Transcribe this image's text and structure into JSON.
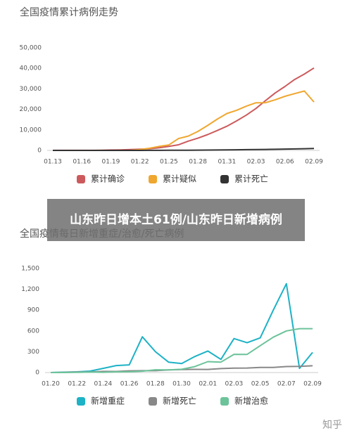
{
  "chart_data": [
    {
      "type": "line",
      "title": "全国疫情累计病例走势",
      "categories": [
        "01.13",
        null,
        null,
        "01.16",
        null,
        null,
        "01.19",
        null,
        null,
        "01.22",
        null,
        null,
        "01.25",
        null,
        null,
        "01.28",
        null,
        null,
        "01.31",
        null,
        null,
        "02.03",
        null,
        null,
        "02.06",
        null,
        null,
        "02.09"
      ],
      "series": [
        {
          "name": "累计确诊",
          "color": "#cc5a5c",
          "values": [
            41,
            41,
            41,
            41,
            45,
            62,
            198,
            291,
            440,
            571,
            830,
            1287,
            1975,
            2744,
            4515,
            5974,
            7711,
            9692,
            11791,
            14380,
            17205,
            20438,
            24324,
            28018,
            31161,
            34546,
            37198,
            40171
          ]
        },
        {
          "name": "累计疑似",
          "color": "#efa72f",
          "values": [
            0,
            0,
            0,
            0,
            0,
            0,
            0,
            0,
            0,
            393,
            1072,
            1965,
            2684,
            5794,
            6973,
            9239,
            12167,
            15238,
            17988,
            19544,
            21558,
            23214,
            23260,
            24702,
            26359,
            27657,
            28942,
            23589
          ]
        },
        {
          "name": "累计死亡",
          "color": "#333333",
          "values": [
            1,
            1,
            1,
            1,
            2,
            2,
            3,
            6,
            9,
            17,
            25,
            41,
            56,
            80,
            106,
            132,
            170,
            213,
            259,
            304,
            361,
            425,
            490,
            563,
            636,
            722,
            811,
            908
          ]
        }
      ],
      "ylim": [
        0,
        50000
      ],
      "yticks": [
        0,
        {
          "value": 10000,
          "label": "10,000"
        },
        {
          "value": 20000,
          "label": "20,000"
        },
        {
          "value": 30000,
          "label": "30,000"
        },
        {
          "value": 40000,
          "label": "40,000"
        },
        {
          "value": 50000,
          "label": "50,000"
        }
      ],
      "grid": false
    },
    {
      "type": "line",
      "title": "全国疫情每日新增重症/治愈/死亡病例",
      "categories": [
        "01.20",
        null,
        "01.22",
        null,
        "01.24",
        null,
        "01.26",
        null,
        "01.28",
        null,
        "01.30",
        null,
        "02.01",
        null,
        "02.03",
        null,
        "02.05",
        null,
        "02.07",
        null,
        "02.09"
      ],
      "series": [
        {
          "name": "新增重症",
          "color": "#1db2c6",
          "values": [
            0,
            5,
            10,
            20,
            60,
            100,
            110,
            515,
            300,
            150,
            130,
            230,
            310,
            190,
            490,
            430,
            500,
            900,
            1280,
            60,
            290
          ]
        },
        {
          "name": "新增死亡",
          "color": "#888888",
          "values": [
            0,
            3,
            8,
            8,
            16,
            15,
            24,
            26,
            26,
            38,
            43,
            46,
            45,
            57,
            64,
            65,
            73,
            73,
            86,
            89,
            97
          ]
        },
        {
          "name": "新增治愈",
          "color": "#6cc39a",
          "values": [
            0,
            0,
            3,
            6,
            4,
            10,
            11,
            19,
            40,
            38,
            47,
            85,
            157,
            150,
            262,
            261,
            387,
            510,
            600,
            632,
            632
          ]
        }
      ],
      "ylim": [
        0,
        1500
      ],
      "yticks": [
        0,
        300,
        600,
        900,
        {
          "value": 1200,
          "label": "1,200"
        },
        {
          "value": 1500,
          "label": "1,500"
        }
      ],
      "grid": false
    }
  ],
  "overlay_title": "山东昨日增本土61例/山东昨日新增病例",
  "watermark": "知乎"
}
